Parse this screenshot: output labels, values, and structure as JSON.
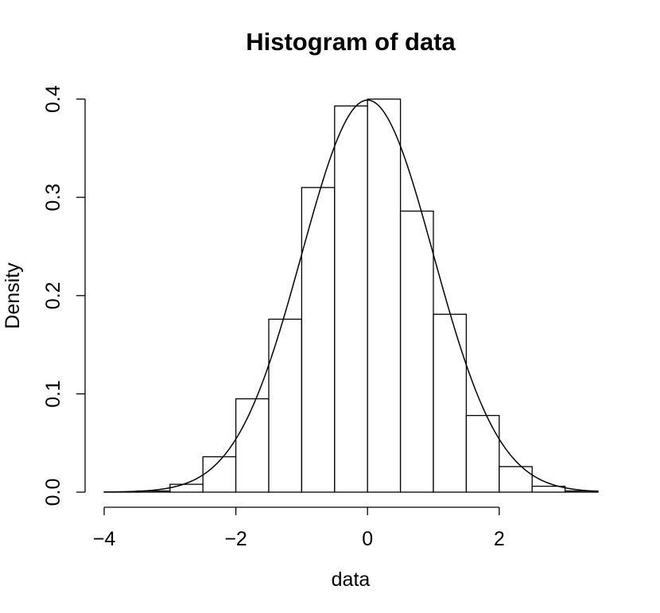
{
  "chart_data": {
    "type": "bar",
    "title": "Histogram of data",
    "xlabel": "data",
    "ylabel": "Density",
    "xlim": [
      -4,
      3.5
    ],
    "ylim": [
      0,
      0.4
    ],
    "x_ticks": [
      -4,
      -2,
      0,
      2
    ],
    "x_tick_labels": [
      "−4",
      "−2",
      "0",
      "2"
    ],
    "y_ticks": [
      0,
      0.1,
      0.2,
      0.3,
      0.4
    ],
    "y_tick_labels": [
      "0.0",
      "0.1",
      "0.2",
      "0.3",
      "0.4"
    ],
    "bins": [
      {
        "x0": -4.0,
        "x1": -3.5,
        "density": 0.0003
      },
      {
        "x0": -3.5,
        "x1": -3.0,
        "density": 0.0012
      },
      {
        "x0": -3.0,
        "x1": -2.5,
        "density": 0.008
      },
      {
        "x0": -2.5,
        "x1": -2.0,
        "density": 0.036
      },
      {
        "x0": -2.0,
        "x1": -1.5,
        "density": 0.095
      },
      {
        "x0": -1.5,
        "x1": -1.0,
        "density": 0.176
      },
      {
        "x0": -1.0,
        "x1": -0.5,
        "density": 0.31
      },
      {
        "x0": -0.5,
        "x1": 0.0,
        "density": 0.393
      },
      {
        "x0": 0.0,
        "x1": 0.5,
        "density": 0.4
      },
      {
        "x0": 0.5,
        "x1": 1.0,
        "density": 0.286
      },
      {
        "x0": 1.0,
        "x1": 1.5,
        "density": 0.181
      },
      {
        "x0": 1.5,
        "x1": 2.0,
        "density": 0.078
      },
      {
        "x0": 2.0,
        "x1": 2.5,
        "density": 0.026
      },
      {
        "x0": 2.5,
        "x1": 3.0,
        "density": 0.006
      },
      {
        "x0": 3.0,
        "x1": 3.5,
        "density": 0.0012
      }
    ],
    "curve": {
      "type": "normal-density",
      "mean": 0,
      "sd": 1
    },
    "grid": false,
    "legend": false
  }
}
